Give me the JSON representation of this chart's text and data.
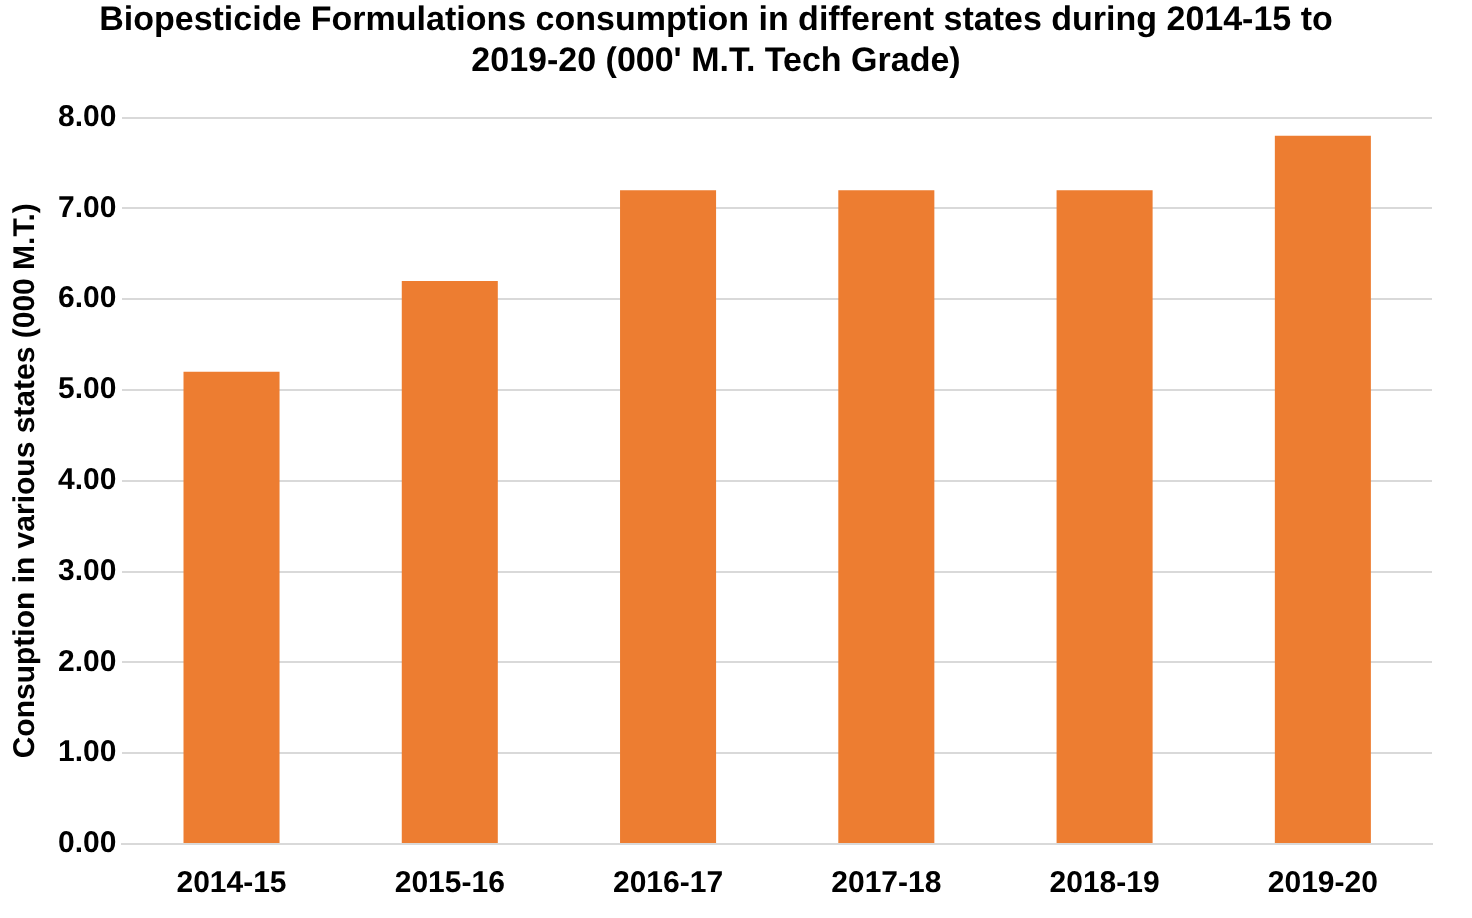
{
  "chart_data": {
    "type": "bar",
    "title": "Biopesticide Formulations consumption in different states during 2014-15 to 2019-20 (000' M.T. Tech Grade)",
    "ylabel": "Consuption in various states (000 M.T.)",
    "categories": [
      "2014-15",
      "2015-16",
      "2016-17",
      "2017-18",
      "2018-19",
      "2019-20"
    ],
    "values": [
      5.2,
      6.2,
      7.2,
      7.2,
      7.2,
      7.8
    ],
    "color": "#ed7d31",
    "ylim": [
      0,
      8
    ],
    "yticks": [
      {
        "value": 0,
        "label": "0.00"
      },
      {
        "value": 1,
        "label": "1.00"
      },
      {
        "value": 2,
        "label": "2.00"
      },
      {
        "value": 3,
        "label": "3.00"
      },
      {
        "value": 4,
        "label": "4.00"
      },
      {
        "value": 5,
        "label": "5.00"
      },
      {
        "value": 6,
        "label": "6.00"
      },
      {
        "value": 7,
        "label": "7.00"
      },
      {
        "value": 8,
        "label": "8.00"
      }
    ],
    "grid": "y",
    "legend": false
  }
}
